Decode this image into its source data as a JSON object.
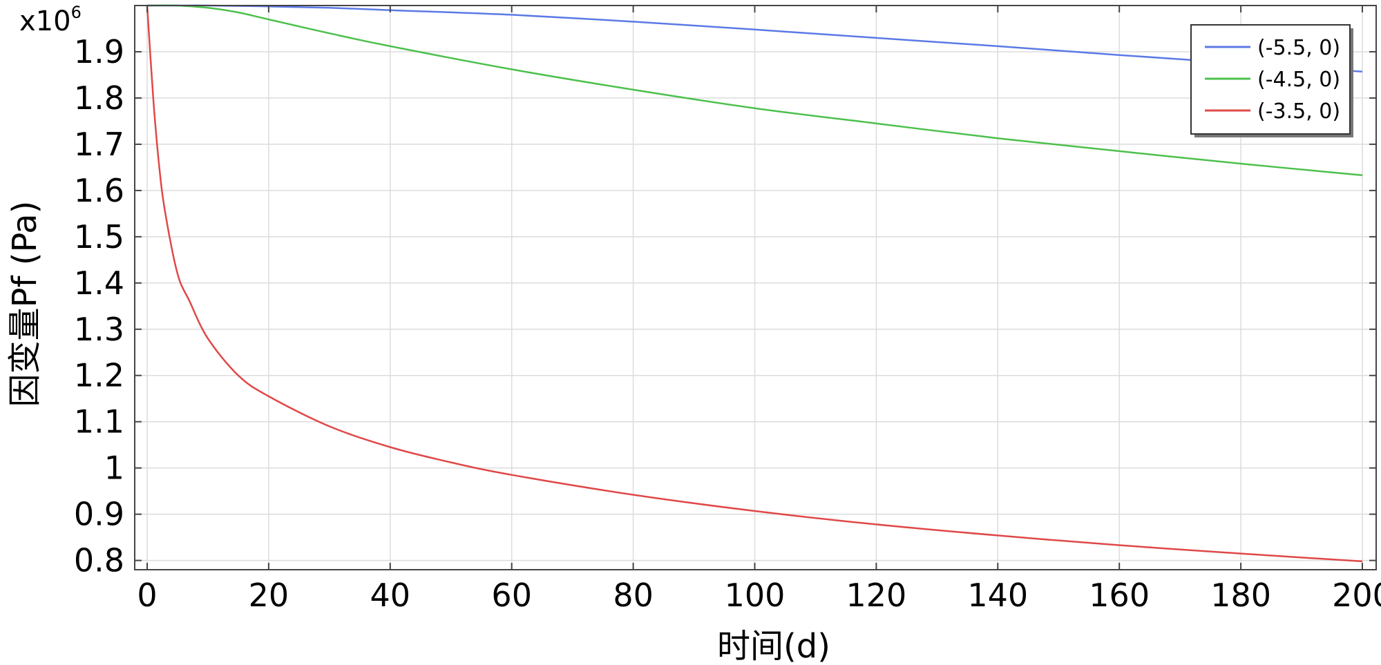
{
  "chart_data": {
    "type": "line",
    "xlabel": "时间(d)",
    "ylabel": "因变量Pf (Pa)",
    "y_multiplier": "x10",
    "y_multiplier_exp": "6",
    "xlim": [
      0,
      200
    ],
    "ylim": [
      0.78,
      2.0
    ],
    "x_ticks": [
      0,
      20,
      40,
      60,
      80,
      100,
      120,
      140,
      160,
      180,
      200
    ],
    "x_tick_labels": [
      "0",
      "20",
      "40",
      "60",
      "80",
      "100",
      "120",
      "140",
      "160",
      "180",
      "200"
    ],
    "y_ticks": [
      0.8,
      0.9,
      1.0,
      1.1,
      1.2,
      1.3,
      1.4,
      1.5,
      1.6,
      1.7,
      1.8,
      1.9
    ],
    "y_tick_labels": [
      "0.8",
      "0.9",
      "1",
      "1.1",
      "1.2",
      "1.3",
      "1.4",
      "1.5",
      "1.6",
      "1.7",
      "1.8",
      "1.9"
    ],
    "grid": true,
    "legend_position": "top-right",
    "series": [
      {
        "name": "(-5.5, 0)",
        "color": "#5b7ae6",
        "x": [
          0,
          5,
          10,
          20,
          30,
          40,
          60,
          80,
          100,
          120,
          140,
          160,
          180,
          200
        ],
        "y": [
          2.0,
          2.0,
          2.0,
          1.998,
          1.995,
          1.99,
          1.98,
          1.965,
          1.948,
          1.93,
          1.912,
          1.893,
          1.875,
          1.857
        ]
      },
      {
        "name": "(-4.5, 0)",
        "color": "#4cc04c",
        "x": [
          0,
          5,
          10,
          15,
          20,
          30,
          40,
          60,
          80,
          100,
          120,
          140,
          160,
          180,
          200
        ],
        "y": [
          2.0,
          2.0,
          1.995,
          1.985,
          1.97,
          1.94,
          1.912,
          1.862,
          1.818,
          1.778,
          1.745,
          1.713,
          1.685,
          1.658,
          1.633
        ]
      },
      {
        "name": "(-3.5, 0)",
        "color": "#e04848",
        "x": [
          0,
          1,
          2,
          3,
          5,
          7,
          10,
          15,
          20,
          30,
          40,
          50,
          60,
          80,
          100,
          120,
          140,
          160,
          180,
          200
        ],
        "y": [
          2.0,
          1.8,
          1.65,
          1.55,
          1.42,
          1.36,
          1.28,
          1.2,
          1.155,
          1.09,
          1.045,
          1.012,
          0.985,
          0.942,
          0.907,
          0.878,
          0.854,
          0.833,
          0.815,
          0.798
        ]
      }
    ]
  }
}
